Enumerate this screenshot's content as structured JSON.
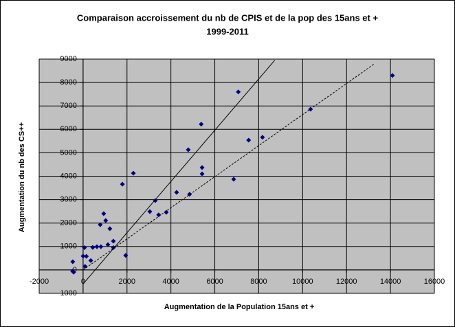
{
  "chart_data": {
    "type": "scatter",
    "title": [
      "Comparaison accroissement du nb de CPIS et de la pop des 15ans et +",
      "1999-2011"
    ],
    "x_label": "Augmentation de la Population 15ans et +",
    "y_label": "Augmentation du nb des CS++",
    "xlim": [
      -2000,
      16000
    ],
    "ylim": [
      -1000,
      9000
    ],
    "xticks": [
      -2000,
      0,
      2000,
      4000,
      6000,
      8000,
      10000,
      12000,
      14000,
      16000
    ],
    "yticks": [
      -1000,
      0,
      1000,
      2000,
      3000,
      4000,
      5000,
      6000,
      7000,
      8000,
      9000
    ],
    "grid": true,
    "series": [
      {
        "color": "#000080",
        "x": [
          -470,
          -480,
          -430,
          0,
          60,
          90,
          150,
          350,
          440,
          630,
          780,
          810,
          940,
          1030,
          1130,
          1220,
          1380,
          1380,
          1790,
          1940,
          2290,
          3040,
          3290,
          3440,
          3790,
          4260,
          4790,
          4850,
          5380,
          5420,
          5420,
          6860,
          7070,
          7540,
          8170,
          10360,
          14090
        ],
        "values": [
          350,
          -50,
          -100,
          590,
          950,
          150,
          580,
          400,
          960,
          990,
          1930,
          990,
          2400,
          2110,
          1080,
          1760,
          1230,
          950,
          3660,
          620,
          4130,
          2490,
          2960,
          2350,
          2460,
          3310,
          5130,
          3230,
          6220,
          4370,
          4100,
          3870,
          7600,
          5540,
          5660,
          6860,
          8300
        ]
      }
    ],
    "trendlines": [
      {
        "x": [
          0,
          8730
        ],
        "values": [
          -600,
          8950
        ],
        "color": "#000000",
        "style": "solid"
      },
      {
        "x": [
          0,
          13270
        ],
        "values": [
          0,
          8800
        ],
        "color": "#000000",
        "style": "dotted"
      }
    ]
  }
}
